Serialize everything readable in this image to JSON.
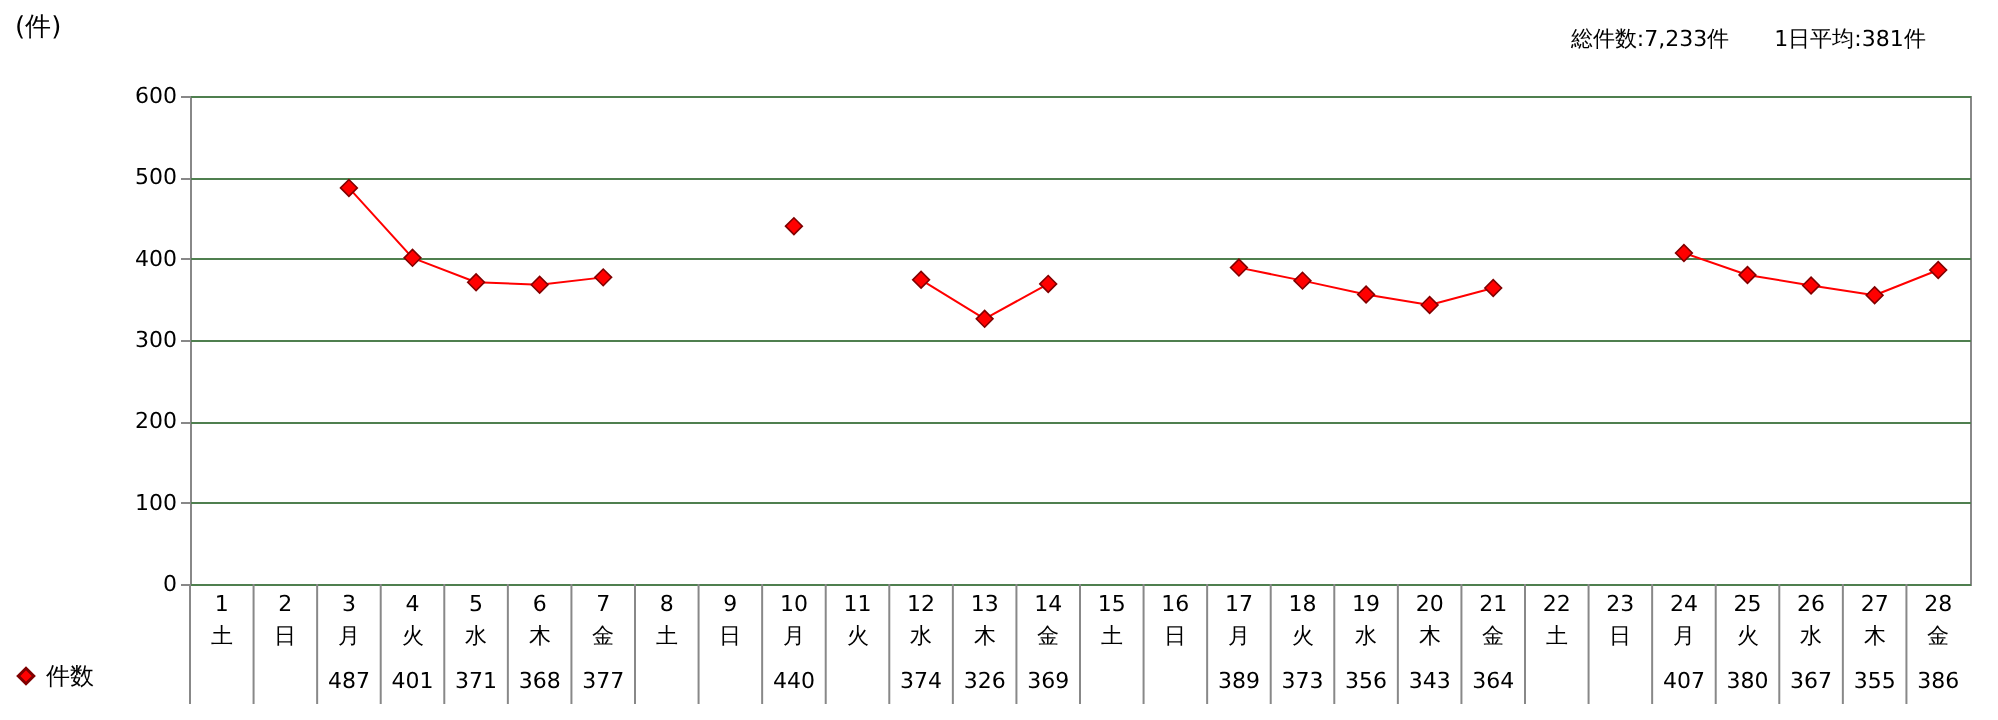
{
  "chart_data": {
    "type": "line",
    "ylabel": "(件)",
    "annotations": [
      "総件数:7,233件",
      "1日平均:381件"
    ],
    "categories": [
      "1\n土",
      "2\n日",
      "3\n月",
      "4\n火",
      "5\n水",
      "6\n木",
      "7\n金",
      "8\n土",
      "9\n日",
      "10\n月",
      "11\n火",
      "12\n水",
      "13\n木",
      "14\n金",
      "15\n土",
      "16\n日",
      "17\n月",
      "18\n火",
      "19\n水",
      "20\n木",
      "21\n金",
      "22\n土",
      "23\n日",
      "24\n月",
      "25\n火",
      "26\n水",
      "27\n木",
      "28\n金"
    ],
    "series": [
      {
        "name": "件数",
        "color": "#ff0000",
        "values": [
          null,
          null,
          487,
          401,
          371,
          368,
          377,
          null,
          null,
          440,
          null,
          374,
          326,
          369,
          null,
          null,
          389,
          373,
          356,
          343,
          364,
          null,
          null,
          407,
          380,
          367,
          355,
          386
        ]
      }
    ],
    "ylim": [
      0,
      600
    ],
    "yticks": [
      0,
      100,
      200,
      300,
      400,
      500,
      600
    ],
    "grid": "y",
    "marker": "diamond",
    "line_style": "solid",
    "legend": "bottom left",
    "data_labels": true
  }
}
